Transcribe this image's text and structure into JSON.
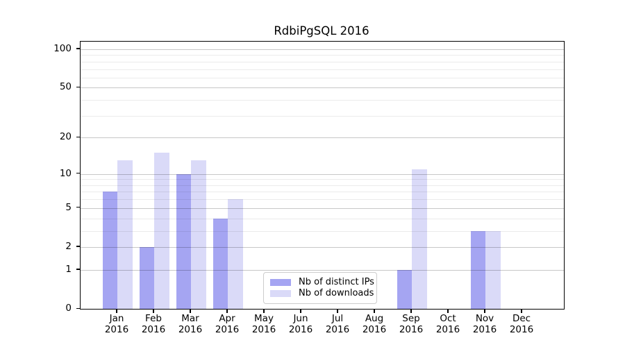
{
  "chart_data": {
    "type": "bar",
    "title": "RdbiPgSQL 2016",
    "year": "2016",
    "categories": [
      "Jan",
      "Feb",
      "Mar",
      "Apr",
      "May",
      "Jun",
      "Jul",
      "Aug",
      "Sep",
      "Oct",
      "Nov",
      "Dec"
    ],
    "series": [
      {
        "name": "Nb of distinct IPs",
        "color": "#a5a5f2",
        "values": [
          7,
          2,
          10,
          4,
          0,
          0,
          0,
          0,
          1,
          0,
          3,
          0
        ]
      },
      {
        "name": "Nb of downloads",
        "color": "#dadaf8",
        "values": [
          13,
          15,
          13,
          6,
          0,
          0,
          0,
          0,
          11,
          0,
          3,
          0
        ]
      }
    ],
    "xlabel": "",
    "ylabel": "",
    "y_scale": "log10(1+x)",
    "y_ticks": [
      0,
      1,
      2,
      5,
      10,
      20,
      50,
      100
    ],
    "y_minor_gridlines": [
      3,
      4,
      6,
      7,
      8,
      9,
      30,
      40,
      60,
      70,
      80,
      90
    ],
    "ylim": [
      0,
      116
    ],
    "grid": true,
    "legend_position": "lower-center-inside"
  },
  "figure": {
    "background": "#ffffff",
    "axis_color": "#000000",
    "major_grid_color": "#c6c6c6",
    "minor_grid_color": "#ececec",
    "legend_border_color": "#cccccc"
  }
}
